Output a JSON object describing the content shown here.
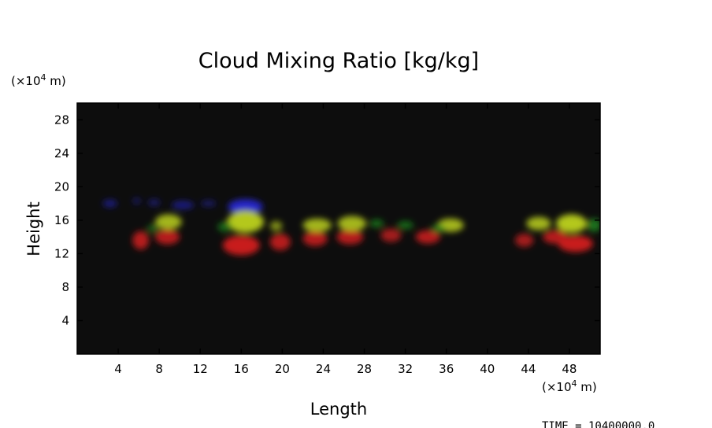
{
  "chart_data": {
    "type": "heatmap",
    "title": "Cloud Mixing Ratio [kg/kg]",
    "xlabel": "Length",
    "ylabel": "Height",
    "x_unit_prefix": "(×10",
    "x_unit_exp": "4",
    "x_unit_suffix": " m)",
    "y_unit_prefix": "(×10",
    "y_unit_exp": "4",
    "y_unit_suffix": " m)",
    "xlim": [
      0,
      51
    ],
    "ylim": [
      0,
      30
    ],
    "x_ticks": [
      4,
      8,
      12,
      16,
      20,
      24,
      28,
      32,
      36,
      40,
      44,
      48
    ],
    "y_ticks": [
      4,
      8,
      12,
      16,
      20,
      24,
      28
    ],
    "time_label": "TIME = 10400000.0",
    "background_color": "#0d0d0d",
    "layer_colors": {
      "low": "#c81e1e",
      "mid": "#b4c81e",
      "edge": "#1e8c1e",
      "high": "#2828c8"
    },
    "features": [
      {
        "layer": "high",
        "x": 3.2,
        "y": 18.0,
        "w": 1.4,
        "h": 0.9,
        "intensity": 0.6
      },
      {
        "layer": "high",
        "x": 5.8,
        "y": 18.3,
        "w": 0.8,
        "h": 0.7,
        "intensity": 0.5
      },
      {
        "layer": "high",
        "x": 7.5,
        "y": 18.1,
        "w": 1.2,
        "h": 0.8,
        "intensity": 0.5
      },
      {
        "layer": "high",
        "x": 10.3,
        "y": 17.8,
        "w": 2.2,
        "h": 1.0,
        "intensity": 0.6
      },
      {
        "layer": "high",
        "x": 12.8,
        "y": 18.0,
        "w": 1.5,
        "h": 0.7,
        "intensity": 0.5
      },
      {
        "layer": "high",
        "x": 16.4,
        "y": 17.6,
        "w": 3.4,
        "h": 1.8,
        "intensity": 1.0
      },
      {
        "layer": "low",
        "x": 6.2,
        "y": 13.6,
        "w": 1.6,
        "h": 2.2,
        "intensity": 0.9
      },
      {
        "layer": "low",
        "x": 8.8,
        "y": 14.0,
        "w": 2.4,
        "h": 1.8,
        "intensity": 0.9
      },
      {
        "layer": "mid",
        "x": 8.9,
        "y": 15.8,
        "w": 2.6,
        "h": 1.8,
        "intensity": 0.9
      },
      {
        "layer": "edge",
        "x": 7.4,
        "y": 15.0,
        "w": 1.2,
        "h": 1.0,
        "intensity": 0.6
      },
      {
        "layer": "low",
        "x": 16.0,
        "y": 13.0,
        "w": 3.6,
        "h": 2.4,
        "intensity": 1.0
      },
      {
        "layer": "mid",
        "x": 16.4,
        "y": 15.8,
        "w": 3.6,
        "h": 2.6,
        "intensity": 1.0
      },
      {
        "layer": "edge",
        "x": 14.4,
        "y": 15.2,
        "w": 1.4,
        "h": 1.2,
        "intensity": 0.7
      },
      {
        "layer": "low",
        "x": 19.8,
        "y": 13.4,
        "w": 2.0,
        "h": 2.0,
        "intensity": 0.9
      },
      {
        "layer": "mid",
        "x": 19.4,
        "y": 15.3,
        "w": 1.2,
        "h": 1.2,
        "intensity": 0.7
      },
      {
        "layer": "low",
        "x": 23.2,
        "y": 13.8,
        "w": 2.4,
        "h": 1.8,
        "intensity": 0.9
      },
      {
        "layer": "mid",
        "x": 23.4,
        "y": 15.4,
        "w": 2.8,
        "h": 1.6,
        "intensity": 0.9
      },
      {
        "layer": "low",
        "x": 26.6,
        "y": 14.0,
        "w": 2.6,
        "h": 1.8,
        "intensity": 0.9
      },
      {
        "layer": "mid",
        "x": 26.8,
        "y": 15.6,
        "w": 2.8,
        "h": 1.8,
        "intensity": 0.9
      },
      {
        "layer": "edge",
        "x": 29.2,
        "y": 15.6,
        "w": 1.4,
        "h": 1.0,
        "intensity": 0.7
      },
      {
        "layer": "low",
        "x": 30.6,
        "y": 14.2,
        "w": 2.0,
        "h": 1.6,
        "intensity": 0.8
      },
      {
        "layer": "edge",
        "x": 32.0,
        "y": 15.4,
        "w": 1.6,
        "h": 1.0,
        "intensity": 0.7
      },
      {
        "layer": "low",
        "x": 34.2,
        "y": 14.0,
        "w": 2.4,
        "h": 1.6,
        "intensity": 0.9
      },
      {
        "layer": "mid",
        "x": 36.4,
        "y": 15.4,
        "w": 2.6,
        "h": 1.6,
        "intensity": 0.9
      },
      {
        "layer": "edge",
        "x": 35.2,
        "y": 15.0,
        "w": 1.4,
        "h": 1.0,
        "intensity": 0.7
      },
      {
        "layer": "low",
        "x": 43.6,
        "y": 13.6,
        "w": 1.8,
        "h": 1.6,
        "intensity": 0.8
      },
      {
        "layer": "low",
        "x": 46.6,
        "y": 14.0,
        "w": 2.4,
        "h": 1.6,
        "intensity": 0.9
      },
      {
        "layer": "low",
        "x": 48.6,
        "y": 13.2,
        "w": 3.4,
        "h": 2.0,
        "intensity": 1.0
      },
      {
        "layer": "mid",
        "x": 45.0,
        "y": 15.6,
        "w": 2.4,
        "h": 1.6,
        "intensity": 0.9
      },
      {
        "layer": "mid",
        "x": 48.2,
        "y": 15.6,
        "w": 3.0,
        "h": 2.2,
        "intensity": 1.0
      },
      {
        "layer": "edge",
        "x": 50.4,
        "y": 15.4,
        "w": 1.4,
        "h": 1.6,
        "intensity": 0.8
      }
    ]
  }
}
